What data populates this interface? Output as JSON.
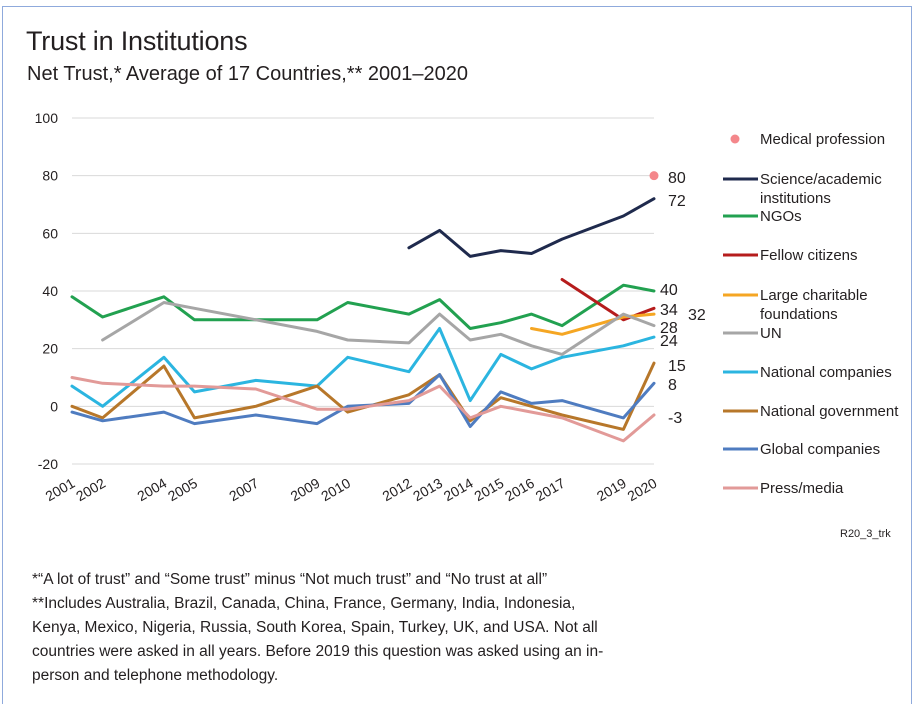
{
  "chart_data": {
    "type": "line",
    "title": "Trust in Institutions",
    "subtitle": "Net Trust,* Average of 17 Countries,** 2001–2020",
    "ylim": [
      -20,
      100
    ],
    "yticks": [
      -20,
      0,
      20,
      40,
      60,
      80,
      100
    ],
    "xticks": [
      "2001",
      "2002",
      "2004",
      "2005",
      "2007",
      "2009",
      "2010",
      "2012",
      "2013",
      "2014",
      "2015",
      "2016",
      "2017",
      "2019",
      "2020"
    ],
    "series": [
      {
        "name": "Medical profession",
        "color": "#f4878b",
        "marker": "point",
        "points": [
          [
            2020,
            80
          ]
        ],
        "end_label": "80"
      },
      {
        "name": "Science/academic institutions",
        "color": "#1f2a4d",
        "points": [
          [
            2012,
            55
          ],
          [
            2013,
            61
          ],
          [
            2014,
            52
          ],
          [
            2015,
            54
          ],
          [
            2016,
            53
          ],
          [
            2017,
            58
          ],
          [
            2019,
            66
          ],
          [
            2020,
            72
          ]
        ],
        "end_label": "72"
      },
      {
        "name": "NGOs",
        "color": "#22a150",
        "points": [
          [
            2001,
            38
          ],
          [
            2002,
            31
          ],
          [
            2004,
            38
          ],
          [
            2005,
            30
          ],
          [
            2007,
            30
          ],
          [
            2009,
            30
          ],
          [
            2010,
            36
          ],
          [
            2012,
            32
          ],
          [
            2013,
            37
          ],
          [
            2014,
            27
          ],
          [
            2015,
            29
          ],
          [
            2016,
            32
          ],
          [
            2017,
            28
          ],
          [
            2019,
            42
          ],
          [
            2020,
            40
          ]
        ],
        "end_label": "40"
      },
      {
        "name": "Fellow citizens",
        "color": "#b61c1c",
        "points": [
          [
            2017,
            44
          ],
          [
            2019,
            30
          ],
          [
            2020,
            34
          ]
        ],
        "end_label": "34"
      },
      {
        "name": "Large charitable foundations",
        "color": "#f5a623",
        "points": [
          [
            2016,
            27
          ],
          [
            2017,
            25
          ],
          [
            2019,
            31
          ],
          [
            2020,
            32
          ]
        ],
        "end_label": "32"
      },
      {
        "name": "UN",
        "color": "#a6a6a6",
        "points": [
          [
            2002,
            23
          ],
          [
            2004,
            36
          ],
          [
            2005,
            34
          ],
          [
            2007,
            30
          ],
          [
            2009,
            26
          ],
          [
            2010,
            23
          ],
          [
            2012,
            22
          ],
          [
            2013,
            32
          ],
          [
            2014,
            23
          ],
          [
            2015,
            25
          ],
          [
            2016,
            21
          ],
          [
            2017,
            18
          ],
          [
            2019,
            32
          ],
          [
            2020,
            28
          ]
        ],
        "end_label": "28"
      },
      {
        "name": "National companies",
        "color": "#2bb5e0",
        "points": [
          [
            2001,
            7
          ],
          [
            2002,
            0
          ],
          [
            2004,
            17
          ],
          [
            2005,
            5
          ],
          [
            2007,
            9
          ],
          [
            2009,
            7
          ],
          [
            2010,
            17
          ],
          [
            2012,
            12
          ],
          [
            2013,
            27
          ],
          [
            2014,
            2
          ],
          [
            2015,
            18
          ],
          [
            2016,
            13
          ],
          [
            2017,
            17
          ],
          [
            2019,
            21
          ],
          [
            2020,
            24
          ]
        ],
        "end_label": "24"
      },
      {
        "name": "National government",
        "color": "#b7772a",
        "points": [
          [
            2001,
            0
          ],
          [
            2002,
            -4
          ],
          [
            2004,
            14
          ],
          [
            2005,
            -4
          ],
          [
            2007,
            0
          ],
          [
            2009,
            7
          ],
          [
            2010,
            -2
          ],
          [
            2012,
            4
          ],
          [
            2013,
            11
          ],
          [
            2014,
            -5
          ],
          [
            2015,
            3
          ],
          [
            2016,
            0
          ],
          [
            2017,
            -3
          ],
          [
            2019,
            -8
          ],
          [
            2020,
            15
          ]
        ],
        "end_label": "15"
      },
      {
        "name": "Global companies",
        "color": "#4f7cc0",
        "points": [
          [
            2001,
            -2
          ],
          [
            2002,
            -5
          ],
          [
            2004,
            -2
          ],
          [
            2005,
            -6
          ],
          [
            2007,
            -3
          ],
          [
            2009,
            -6
          ],
          [
            2010,
            0
          ],
          [
            2012,
            1
          ],
          [
            2013,
            11
          ],
          [
            2014,
            -7
          ],
          [
            2015,
            5
          ],
          [
            2016,
            1
          ],
          [
            2017,
            2
          ],
          [
            2019,
            -4
          ],
          [
            2020,
            8
          ]
        ],
        "end_label": "8"
      },
      {
        "name": "Press/media",
        "color": "#e29a98",
        "points": [
          [
            2001,
            10
          ],
          [
            2002,
            8
          ],
          [
            2004,
            7
          ],
          [
            2005,
            7
          ],
          [
            2007,
            6
          ],
          [
            2009,
            -1
          ],
          [
            2010,
            -1
          ],
          [
            2012,
            2
          ],
          [
            2013,
            7
          ],
          [
            2014,
            -4
          ],
          [
            2015,
            0
          ],
          [
            2016,
            -2
          ],
          [
            2017,
            -4
          ],
          [
            2019,
            -12
          ],
          [
            2020,
            -3
          ]
        ],
        "end_label": "-3"
      }
    ]
  },
  "source_code": "R20_3_trk",
  "notes": [
    "*“A lot of trust” and “Some trust” minus “Not much trust” and “No trust at all”",
    "**Includes Australia, Brazil, Canada, China, France, Germany, India, Indonesia,",
    "Kenya, Mexico, Nigeria, Russia, South Korea, Spain, Turkey, UK, and USA. Not all",
    "countries were asked in all years. Before 2019 this question was asked using an in-",
    "person and telephone methodology."
  ]
}
